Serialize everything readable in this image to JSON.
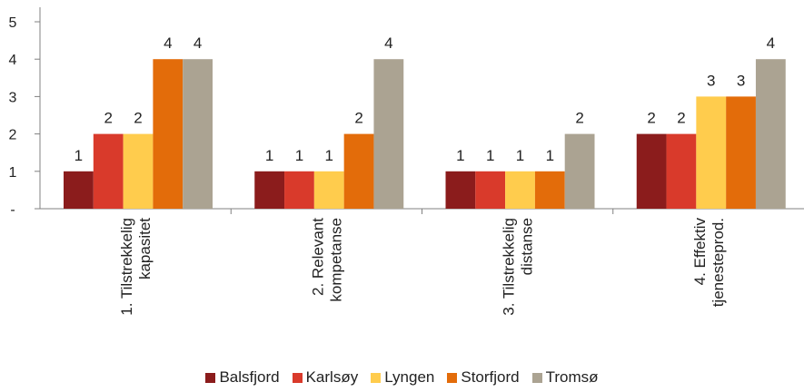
{
  "chart_data": {
    "type": "bar",
    "categories": [
      [
        "1. Tilstrekkelig",
        "kapasitet"
      ],
      [
        "2. Relevant",
        "kompetanse"
      ],
      [
        "3. Tilstrekkelig",
        "distanse"
      ],
      [
        "4. Effektiv",
        "tjenesteprod."
      ]
    ],
    "series": [
      {
        "name": "Balsfjord",
        "color": "#8b1c1c",
        "values": [
          1,
          1,
          1,
          2
        ]
      },
      {
        "name": "Karlsøy",
        "color": "#d93a2b",
        "values": [
          2,
          1,
          1,
          2
        ]
      },
      {
        "name": "Lyngen",
        "color": "#ffcc4d",
        "values": [
          2,
          1,
          1,
          3
        ]
      },
      {
        "name": "Storfjord",
        "color": "#e36c0a",
        "values": [
          4,
          2,
          1,
          3
        ]
      },
      {
        "name": "Tromsø",
        "color": "#aba392",
        "values": [
          4,
          4,
          2,
          4
        ]
      }
    ],
    "data_labels": [
      [
        "1",
        "1",
        "1",
        "2"
      ],
      [
        "2",
        "1",
        "1",
        "2"
      ],
      [
        "2",
        "1",
        "1",
        "3"
      ],
      [
        "4",
        "2",
        "1",
        "3"
      ],
      [
        "4",
        "4",
        "2",
        "4"
      ]
    ],
    "ytick_labels": [
      "-",
      "1",
      "2",
      "1",
      "2",
      "3",
      "4",
      "4",
      "5"
    ],
    "ylim": [
      0,
      5
    ],
    "legend_position": "bottom",
    "grid": false
  }
}
